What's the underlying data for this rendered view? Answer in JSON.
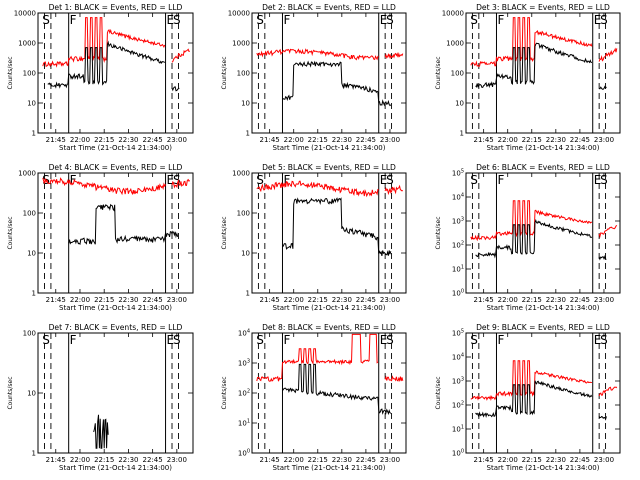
{
  "colors": {
    "events": "#000000",
    "lld": "#ff0000",
    "background": "#ffffff"
  },
  "chart_data": [
    {
      "type": "line",
      "title": "Det 1: BLACK = Events, RED = LLD",
      "ylabel": "Counts/sec",
      "xlabel": "Start Time (21-Oct-14 21:34:00)",
      "yscale": "log",
      "ylim": [
        1,
        10000
      ],
      "ytick_labels": [
        "1",
        "10",
        "100",
        "1000",
        "10000"
      ],
      "xlim": [
        "21:34",
        "23:10"
      ],
      "xtick_labels": [
        "21:45",
        "22:00",
        "22:15",
        "22:30",
        "22:45",
        "23:00"
      ],
      "markers": [
        {
          "label": "S",
          "x": "21:36"
        },
        {
          "label": "F",
          "x": "21:53"
        },
        {
          "label": "E",
          "x": "22:53"
        },
        {
          "label": "S",
          "x": "22:57"
        }
      ],
      "dashed_lines": [
        "21:38",
        "21:42",
        "21:53",
        "22:53",
        "22:57",
        "23:01"
      ],
      "style": "flare",
      "series": [
        {
          "name": "BLACK",
          "label": "Events"
        },
        {
          "name": "RED",
          "label": "LLD"
        }
      ]
    },
    {
      "type": "line",
      "title": "Det 2: BLACK = Events, RED = LLD",
      "ylabel": "Counts/sec",
      "xlabel": "Start Time (21-Oct-14 21:34:00)",
      "yscale": "log",
      "ylim": [
        1,
        10000
      ],
      "ytick_labels": [
        "1",
        "10",
        "100",
        "1000",
        "10000"
      ],
      "xlim": [
        "21:34",
        "23:10"
      ],
      "xtick_labels": [
        "21:45",
        "22:00",
        "22:15",
        "22:30",
        "22:45",
        "23:00"
      ],
      "markers": [
        {
          "label": "S",
          "x": "21:36"
        },
        {
          "label": "F",
          "x": "21:53"
        },
        {
          "label": "E",
          "x": "22:53"
        },
        {
          "label": "S",
          "x": "22:57"
        }
      ],
      "dashed_lines": [
        "21:38",
        "21:42",
        "21:53",
        "22:53",
        "22:57",
        "23:01"
      ],
      "style": "smooth",
      "series": [
        {
          "name": "BLACK",
          "label": "Events"
        },
        {
          "name": "RED",
          "label": "LLD"
        }
      ]
    },
    {
      "type": "line",
      "title": "Det 3: BLACK = Events, RED = LLD",
      "ylabel": "Counts/sec",
      "xlabel": "Start Time (21-Oct-14 21:34:00)",
      "yscale": "log",
      "ylim": [
        1,
        10000
      ],
      "ytick_labels": [
        "1",
        "10",
        "100",
        "1000",
        "10000"
      ],
      "xlim": [
        "21:34",
        "23:10"
      ],
      "xtick_labels": [
        "21:45",
        "22:00",
        "22:15",
        "22:30",
        "22:45",
        "23:00"
      ],
      "markers": [
        {
          "label": "S",
          "x": "21:36"
        },
        {
          "label": "F",
          "x": "21:53"
        },
        {
          "label": "E",
          "x": "22:53"
        },
        {
          "label": "S",
          "x": "22:57"
        }
      ],
      "dashed_lines": [
        "21:38",
        "21:42",
        "21:53",
        "22:53",
        "22:57",
        "23:01"
      ],
      "style": "flare",
      "series": [
        {
          "name": "BLACK",
          "label": "Events"
        },
        {
          "name": "RED",
          "label": "LLD"
        }
      ]
    },
    {
      "type": "line",
      "title": "Det 4: BLACK = Events, RED = LLD",
      "ylabel": "Counts/sec",
      "xlabel": "Start Time (21-Oct-14 21:34:00)",
      "yscale": "log",
      "ylim": [
        1,
        1000
      ],
      "ytick_labels": [
        "1",
        "10",
        "100",
        "1000"
      ],
      "xlim": [
        "21:34",
        "23:10"
      ],
      "xtick_labels": [
        "21:45",
        "22:00",
        "22:15",
        "22:30",
        "22:45",
        "23:00"
      ],
      "markers": [
        {
          "label": "S",
          "x": "21:36"
        },
        {
          "label": "F",
          "x": "21:53"
        },
        {
          "label": "E",
          "x": "22:53"
        },
        {
          "label": "S",
          "x": "22:57"
        }
      ],
      "dashed_lines": [
        "21:38",
        "21:42",
        "21:53",
        "22:53",
        "22:57",
        "23:01"
      ],
      "style": "noisy",
      "series": [
        {
          "name": "BLACK",
          "label": "Events"
        },
        {
          "name": "RED",
          "label": "LLD"
        }
      ]
    },
    {
      "type": "line",
      "title": "Det 5: BLACK = Events, RED = LLD",
      "ylabel": "Counts/sec",
      "xlabel": "Start Time (21-Oct-14 21:34:00)",
      "yscale": "log",
      "ylim": [
        1,
        1000
      ],
      "ytick_labels": [
        "1",
        "10",
        "100",
        "1000"
      ],
      "xlim": [
        "21:34",
        "23:10"
      ],
      "xtick_labels": [
        "21:45",
        "22:00",
        "22:15",
        "22:30",
        "22:45",
        "23:00"
      ],
      "markers": [
        {
          "label": "S",
          "x": "21:36"
        },
        {
          "label": "F",
          "x": "21:53"
        },
        {
          "label": "E",
          "x": "22:53"
        },
        {
          "label": "S",
          "x": "22:57"
        }
      ],
      "dashed_lines": [
        "21:38",
        "21:42",
        "21:53",
        "22:53",
        "22:57",
        "23:01"
      ],
      "style": "smooth",
      "series": [
        {
          "name": "BLACK",
          "label": "Events"
        },
        {
          "name": "RED",
          "label": "LLD"
        }
      ]
    },
    {
      "type": "line",
      "title": "Det 6: BLACK = Events, RED = LLD",
      "ylabel": "Counts/sec",
      "xlabel": "Start Time (21-Oct-14 21:34:00)",
      "yscale": "log",
      "ylim": [
        1,
        100000
      ],
      "ytick_labels": [
        "10^0",
        "10^1",
        "10^2",
        "10^3",
        "10^4",
        "10^5"
      ],
      "xlim": [
        "21:34",
        "23:10"
      ],
      "xtick_labels": [
        "21:45",
        "22:00",
        "22:15",
        "22:30",
        "22:45",
        "23:00"
      ],
      "markers": [
        {
          "label": "S",
          "x": "21:36"
        },
        {
          "label": "F",
          "x": "21:53"
        },
        {
          "label": "E",
          "x": "22:53"
        },
        {
          "label": "S",
          "x": "22:57"
        }
      ],
      "dashed_lines": [
        "21:38",
        "21:42",
        "21:53",
        "22:53",
        "22:57",
        "23:01"
      ],
      "style": "flare",
      "series": [
        {
          "name": "BLACK",
          "label": "Events"
        },
        {
          "name": "RED",
          "label": "LLD"
        }
      ]
    },
    {
      "type": "line",
      "title": "Det 7: BLACK = Events, RED = LLD",
      "ylabel": "Counts/sec",
      "xlabel": "Start Time (21-Oct-14 21:34:00)",
      "yscale": "log",
      "ylim": [
        1,
        100
      ],
      "ytick_labels": [
        "1",
        "10",
        "100"
      ],
      "xlim": [
        "21:34",
        "23:10"
      ],
      "xtick_labels": [
        "21:45",
        "22:00",
        "22:15",
        "22:30",
        "22:45",
        "23:00"
      ],
      "markers": [
        {
          "label": "S",
          "x": "21:36"
        },
        {
          "label": "F",
          "x": "21:53"
        },
        {
          "label": "E",
          "x": "22:53"
        },
        {
          "label": "S",
          "x": "22:57"
        }
      ],
      "dashed_lines": [
        "21:38",
        "21:42",
        "21:53",
        "22:53",
        "22:57",
        "23:01"
      ],
      "style": "sparse",
      "series": [
        {
          "name": "BLACK",
          "label": "Events"
        },
        {
          "name": "RED",
          "label": "LLD"
        }
      ]
    },
    {
      "type": "line",
      "title": "Det 8: BLACK = Events, RED = LLD",
      "ylabel": "Counts/sec",
      "xlabel": "Start Time (21-Oct-14 21:34:00)",
      "yscale": "log",
      "ylim": [
        1,
        10000
      ],
      "ytick_labels": [
        "10^0",
        "10^1",
        "10^2",
        "10^3",
        "10^4"
      ],
      "xlim": [
        "21:34",
        "23:10"
      ],
      "xtick_labels": [
        "21:45",
        "22:00",
        "22:15",
        "22:30",
        "22:45",
        "23:00"
      ],
      "markers": [
        {
          "label": "S",
          "x": "21:36"
        },
        {
          "label": "F",
          "x": "21:53"
        },
        {
          "label": "E",
          "x": "22:53"
        },
        {
          "label": "S",
          "x": "22:57"
        }
      ],
      "dashed_lines": [
        "21:38",
        "21:42",
        "21:53",
        "22:53",
        "22:57",
        "23:01"
      ],
      "style": "det8",
      "series": [
        {
          "name": "BLACK",
          "label": "Events"
        },
        {
          "name": "RED",
          "label": "LLD"
        }
      ]
    },
    {
      "type": "line",
      "title": "Det 9: BLACK = Events, RED = LLD",
      "ylabel": "Counts/sec",
      "xlabel": "Start Time (21-Oct-14 21:34:00)",
      "yscale": "log",
      "ylim": [
        1,
        100000
      ],
      "ytick_labels": [
        "10^0",
        "10^1",
        "10^2",
        "10^3",
        "10^4",
        "10^5"
      ],
      "xlim": [
        "21:34",
        "23:10"
      ],
      "xtick_labels": [
        "21:45",
        "22:00",
        "22:15",
        "22:30",
        "22:45",
        "23:00"
      ],
      "markers": [
        {
          "label": "S",
          "x": "21:36"
        },
        {
          "label": "F",
          "x": "21:53"
        },
        {
          "label": "E",
          "x": "22:53"
        },
        {
          "label": "S",
          "x": "22:57"
        }
      ],
      "dashed_lines": [
        "21:38",
        "21:42",
        "21:53",
        "22:53",
        "22:57",
        "23:01"
      ],
      "style": "flare",
      "series": [
        {
          "name": "BLACK",
          "label": "Events"
        },
        {
          "name": "RED",
          "label": "LLD"
        }
      ]
    }
  ]
}
